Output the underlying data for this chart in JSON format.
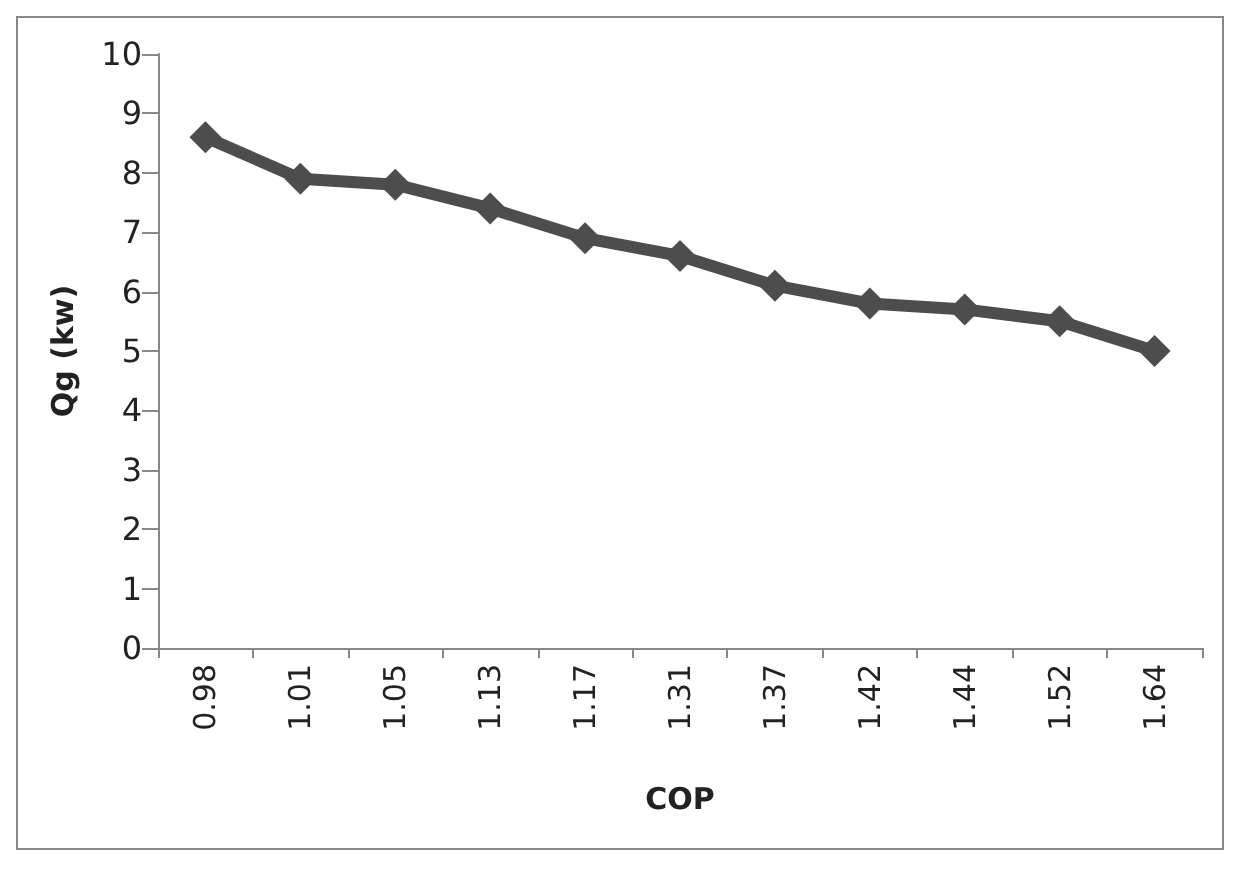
{
  "chart_data": {
    "type": "line",
    "xlabel": "COP",
    "ylabel": "Qg (kw)",
    "categories": [
      "0.98",
      "1.01",
      "1.05",
      "1.13",
      "1.17",
      "1.31",
      "1.37",
      "1.42",
      "1.44",
      "1.52",
      "1.64"
    ],
    "series": [
      {
        "color": "#4d4d4d",
        "values": [
          8.6,
          7.9,
          7.8,
          7.4,
          6.9,
          6.6,
          6.1,
          5.8,
          5.7,
          5.5,
          5.0
        ]
      }
    ],
    "ylim": [
      0,
      10
    ],
    "yticks": [
      0,
      1,
      2,
      3,
      4,
      5,
      6,
      7,
      8,
      9,
      10
    ],
    "grid": false,
    "marker": "diamond",
    "line_style": "solid"
  }
}
